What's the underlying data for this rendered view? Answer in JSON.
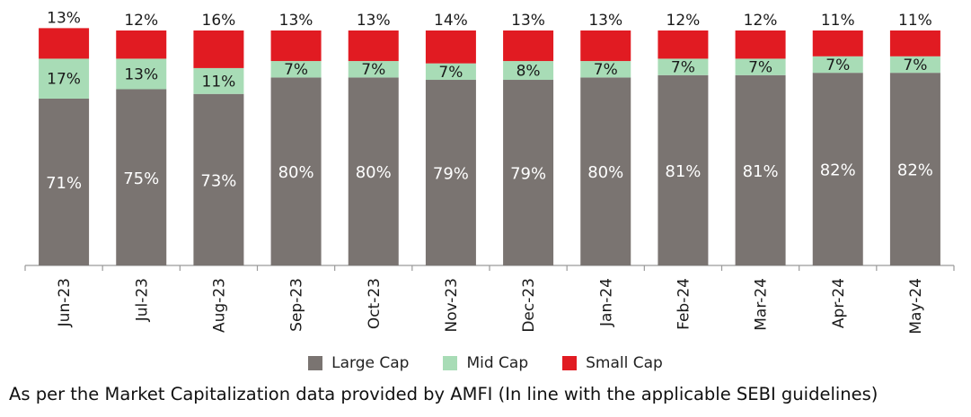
{
  "chart_data": {
    "type": "bar",
    "stacked": true,
    "percent": true,
    "categories": [
      "Jun-23",
      "Jul-23",
      "Aug-23",
      "Sep-23",
      "Oct-23",
      "Nov-23",
      "Dec-23",
      "Jan-24",
      "Feb-24",
      "Mar-24",
      "Apr-24",
      "May-24"
    ],
    "series": [
      {
        "name": "Large Cap",
        "color": "#7a7471",
        "values": [
          71,
          75,
          73,
          80,
          80,
          79,
          79,
          80,
          81,
          81,
          82,
          82
        ]
      },
      {
        "name": "Mid Cap",
        "color": "#a8dcb6",
        "values": [
          17,
          13,
          11,
          7,
          7,
          7,
          8,
          7,
          7,
          7,
          7,
          7
        ]
      },
      {
        "name": "Small Cap",
        "color": "#e11b22",
        "values": [
          13,
          12,
          16,
          13,
          13,
          14,
          13,
          13,
          12,
          12,
          11,
          11
        ]
      }
    ],
    "labels_inside": true,
    "legend_position": "bottom",
    "grid": false
  },
  "legend": {
    "items": [
      {
        "label": "Large Cap",
        "color": "#7a7471"
      },
      {
        "label": "Mid Cap",
        "color": "#a8dcb6"
      },
      {
        "label": "Small Cap",
        "color": "#e11b22"
      }
    ]
  },
  "footnote": "As per the Market Capitalization data provided by AMFI (In line with the applicable SEBI guidelines)"
}
